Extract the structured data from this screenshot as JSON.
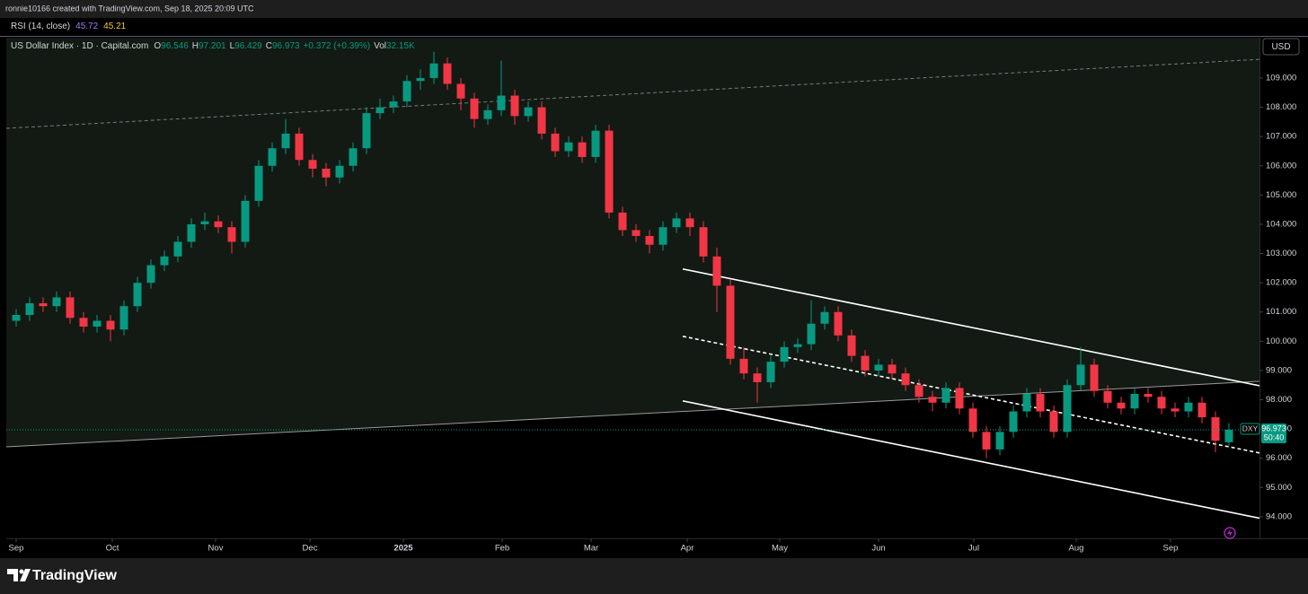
{
  "header": {
    "credit": "ronnie10166 created with TradingView.com, Sep 18, 2025 20:09 UTC"
  },
  "indicator": {
    "name": "RSI (14, close)",
    "values": [
      45.72,
      45.21
    ],
    "colors": [
      "#9c7cf4",
      "#f5c542"
    ]
  },
  "currency": "USD",
  "footer": {
    "brand": "TradingView"
  },
  "chart_data": {
    "type": "candlestick",
    "title": "US Dollar Index · 1D · Capital.com",
    "ohlc_labels": [
      "O",
      "H",
      "L",
      "C"
    ],
    "change": "+0.372 (+0.39%)",
    "volume_label": "Vol",
    "volume": "32.15K",
    "symbol": "DXY",
    "countdown": "50:40",
    "up_color": "#089981",
    "down_color": "#f23645",
    "x": [
      0,
      3,
      6,
      9,
      12,
      15,
      18,
      21,
      24,
      27,
      30,
      33,
      36,
      39,
      42,
      45,
      48,
      51,
      54,
      57,
      60,
      63,
      66,
      69,
      72,
      75,
      78,
      81,
      84,
      87,
      90,
      93,
      96,
      99,
      102,
      105,
      108,
      111,
      114,
      117,
      120,
      123,
      126,
      129,
      132,
      135,
      138,
      141,
      144,
      147,
      150,
      153,
      156,
      159,
      162,
      165,
      168,
      171,
      174,
      177,
      180,
      183,
      186,
      189,
      192,
      195,
      198,
      201,
      204,
      207,
      210,
      213,
      216,
      219,
      222,
      225,
      228,
      231,
      234,
      237,
      240,
      243,
      246,
      249,
      252,
      255,
      258,
      261,
      264,
      267,
      270
    ],
    "ohlc": [
      [
        100.7,
        101.1,
        100.5,
        100.9
      ],
      [
        100.9,
        101.5,
        100.7,
        101.3
      ],
      [
        101.3,
        101.5,
        101.0,
        101.2
      ],
      [
        101.2,
        101.7,
        101.0,
        101.5
      ],
      [
        101.5,
        101.7,
        100.6,
        100.8
      ],
      [
        100.8,
        101.0,
        100.3,
        100.5
      ],
      [
        100.5,
        100.9,
        100.3,
        100.7
      ],
      [
        100.7,
        100.9,
        100.0,
        100.4
      ],
      [
        100.4,
        101.4,
        100.2,
        101.2
      ],
      [
        101.2,
        102.2,
        101.0,
        102.0
      ],
      [
        102.0,
        102.8,
        101.8,
        102.6
      ],
      [
        102.6,
        103.1,
        102.4,
        102.9
      ],
      [
        102.9,
        103.6,
        102.7,
        103.4
      ],
      [
        103.4,
        104.2,
        103.2,
        104.0
      ],
      [
        104.0,
        104.4,
        103.8,
        104.1
      ],
      [
        104.1,
        104.3,
        103.7,
        103.9
      ],
      [
        103.9,
        104.1,
        103.0,
        103.4
      ],
      [
        103.4,
        105.0,
        103.2,
        104.8
      ],
      [
        104.8,
        106.2,
        104.6,
        106.0
      ],
      [
        106.0,
        106.8,
        105.8,
        106.6
      ],
      [
        106.6,
        107.6,
        106.4,
        107.1
      ],
      [
        107.1,
        107.3,
        106.0,
        106.2
      ],
      [
        106.2,
        106.4,
        105.6,
        105.9
      ],
      [
        105.9,
        106.1,
        105.3,
        105.6
      ],
      [
        105.6,
        106.2,
        105.4,
        106.0
      ],
      [
        106.0,
        106.8,
        105.8,
        106.6
      ],
      [
        106.6,
        108.0,
        106.4,
        107.8
      ],
      [
        107.8,
        108.3,
        107.6,
        108.0
      ],
      [
        108.0,
        108.4,
        107.8,
        108.2
      ],
      [
        108.2,
        109.1,
        108.0,
        108.9
      ],
      [
        108.9,
        109.3,
        108.6,
        109.0
      ],
      [
        109.0,
        109.9,
        108.8,
        109.5
      ],
      [
        109.5,
        109.7,
        108.6,
        108.8
      ],
      [
        108.8,
        109.0,
        107.9,
        108.3
      ],
      [
        108.3,
        108.5,
        107.3,
        107.6
      ],
      [
        107.6,
        108.1,
        107.4,
        107.9
      ],
      [
        107.9,
        109.6,
        107.7,
        108.4
      ],
      [
        108.4,
        108.6,
        107.4,
        107.7
      ],
      [
        107.7,
        108.2,
        107.5,
        108.0
      ],
      [
        108.0,
        108.2,
        106.9,
        107.1
      ],
      [
        107.1,
        107.3,
        106.3,
        106.5
      ],
      [
        106.5,
        107.0,
        106.3,
        106.8
      ],
      [
        106.8,
        107.0,
        106.1,
        106.3
      ],
      [
        106.3,
        107.4,
        106.1,
        107.2
      ],
      [
        107.2,
        107.4,
        104.2,
        104.4
      ],
      [
        104.4,
        104.6,
        103.6,
        103.8
      ],
      [
        103.8,
        104.0,
        103.4,
        103.6
      ],
      [
        103.6,
        103.8,
        103.0,
        103.3
      ],
      [
        103.3,
        104.1,
        103.1,
        103.9
      ],
      [
        103.9,
        104.4,
        103.7,
        104.2
      ],
      [
        104.2,
        104.4,
        103.6,
        103.9
      ],
      [
        103.9,
        104.1,
        102.7,
        102.9
      ],
      [
        102.9,
        103.2,
        101.0,
        101.9
      ],
      [
        101.9,
        102.1,
        99.2,
        99.4
      ],
      [
        99.4,
        99.8,
        98.7,
        98.9
      ],
      [
        98.9,
        99.1,
        97.9,
        98.6
      ],
      [
        98.6,
        99.5,
        98.4,
        99.3
      ],
      [
        99.3,
        100.0,
        99.1,
        99.8
      ],
      [
        99.8,
        100.1,
        99.6,
        99.9
      ],
      [
        99.9,
        101.4,
        99.7,
        100.6
      ],
      [
        100.6,
        101.2,
        100.4,
        101.0
      ],
      [
        101.0,
        101.2,
        100.0,
        100.2
      ],
      [
        100.2,
        100.4,
        99.3,
        99.5
      ],
      [
        99.5,
        99.7,
        98.8,
        99.0
      ],
      [
        99.0,
        99.4,
        98.8,
        99.2
      ],
      [
        99.2,
        99.4,
        98.7,
        98.9
      ],
      [
        98.9,
        99.1,
        98.3,
        98.5
      ],
      [
        98.5,
        98.7,
        97.9,
        98.1
      ],
      [
        98.1,
        98.3,
        97.6,
        97.9
      ],
      [
        97.9,
        98.6,
        97.7,
        98.4
      ],
      [
        98.4,
        98.6,
        97.5,
        97.7
      ],
      [
        97.7,
        97.9,
        96.7,
        96.9
      ],
      [
        96.9,
        97.1,
        96.0,
        96.3
      ],
      [
        96.3,
        97.1,
        96.1,
        96.9
      ],
      [
        96.9,
        97.8,
        96.7,
        97.6
      ],
      [
        97.6,
        98.4,
        97.4,
        98.2
      ],
      [
        98.2,
        98.4,
        97.4,
        97.6
      ],
      [
        97.6,
        97.8,
        96.7,
        96.9
      ],
      [
        96.9,
        98.7,
        96.7,
        98.5
      ],
      [
        98.5,
        99.8,
        98.3,
        99.2
      ],
      [
        99.2,
        99.4,
        98.1,
        98.3
      ],
      [
        98.3,
        98.5,
        97.7,
        97.9
      ],
      [
        97.9,
        98.1,
        97.5,
        97.7
      ],
      [
        97.7,
        98.4,
        97.5,
        98.2
      ],
      [
        98.2,
        98.4,
        97.9,
        98.1
      ],
      [
        98.1,
        98.3,
        97.5,
        97.7
      ],
      [
        97.7,
        97.9,
        97.4,
        97.6
      ],
      [
        97.6,
        98.1,
        97.4,
        97.9
      ],
      [
        97.9,
        98.1,
        97.2,
        97.4
      ],
      [
        97.4,
        97.6,
        96.2,
        96.6
      ],
      [
        96.546,
        97.201,
        96.429,
        96.973
      ]
    ],
    "xlim": [
      -2.2,
      276.8
    ],
    "ylim": [
      93.26,
      110.38
    ],
    "xticks": [
      {
        "value": 0,
        "label": "Sep"
      },
      {
        "value": 21.4,
        "label": "Oct"
      },
      {
        "value": 44.4,
        "label": "Nov"
      },
      {
        "value": 65.4,
        "label": "Dec"
      },
      {
        "value": 86.2,
        "label": "2025"
      },
      {
        "value": 108.2,
        "label": "Feb"
      },
      {
        "value": 128,
        "label": "Mar"
      },
      {
        "value": 149.4,
        "label": "Apr"
      },
      {
        "value": 170,
        "label": "May"
      },
      {
        "value": 192,
        "label": "Jun"
      },
      {
        "value": 213.2,
        "label": "Jul"
      },
      {
        "value": 236,
        "label": "Aug"
      },
      {
        "value": 257,
        "label": "Sep"
      }
    ],
    "yticks": [
      {
        "value": 94,
        "label": "94.000"
      },
      {
        "value": 95,
        "label": "95.000"
      },
      {
        "value": 96,
        "label": "96.000"
      },
      {
        "value": 97,
        "label": "97.000"
      },
      {
        "value": 98,
        "label": "98.000"
      },
      {
        "value": 99,
        "label": "99.000"
      },
      {
        "value": 100,
        "label": "100.000"
      },
      {
        "value": 101,
        "label": "101.000"
      },
      {
        "value": 102,
        "label": "102.000"
      },
      {
        "value": 103,
        "label": "103.000"
      },
      {
        "value": 104,
        "label": "104.000"
      },
      {
        "value": 105,
        "label": "105.000"
      },
      {
        "value": 106,
        "label": "106.000"
      },
      {
        "value": 107,
        "label": "107.000"
      },
      {
        "value": 108,
        "label": "108.000"
      },
      {
        "value": 109,
        "label": "109.000"
      }
    ],
    "trendlines": [
      {
        "points": [
          [
            -2.2,
            96.39
          ],
          [
            276.8,
            98.63
          ]
        ],
        "color": "#9a9a9a",
        "dashed": false,
        "fill_above": "#121a13"
      },
      {
        "points": [
          [
            -2.2,
            107.28
          ],
          [
            276.8,
            109.64
          ]
        ],
        "color": "#7a7a7a",
        "dashed": true
      },
      {
        "points": [
          [
            148.4,
            102.47
          ],
          [
            276.8,
            98.48
          ]
        ],
        "color": "#ffffff",
        "dashed": false
      },
      {
        "points": [
          [
            148.4,
            100.17
          ],
          [
            276.8,
            96.18
          ]
        ],
        "color": "#ffffff",
        "dashed": true
      },
      {
        "points": [
          [
            148.4,
            97.96
          ],
          [
            276.8,
            93.95
          ]
        ],
        "color": "#ffffff",
        "dashed": false
      }
    ]
  }
}
